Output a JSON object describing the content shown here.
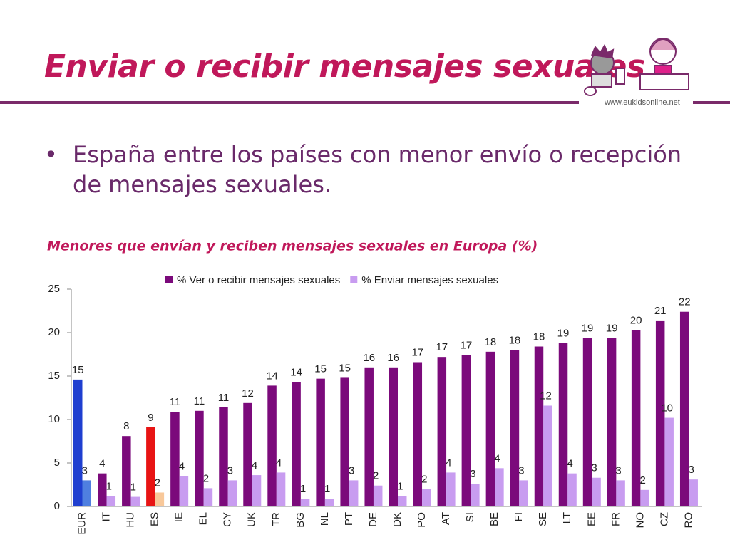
{
  "slide": {
    "title": "Enviar o recibir mensajes sexuales",
    "url": "www.eukidsonline.net",
    "bullet": "España entre los países con menor envío o recepción de mensajes sexuales."
  },
  "chart_data": {
    "type": "bar",
    "title": "Menores que envían y reciben mensajes sexuales en Europa (%)",
    "categories": [
      "EUR",
      "IT",
      "HU",
      "ES",
      "IE",
      "EL",
      "CY",
      "UK",
      "TR",
      "BG",
      "NL",
      "PT",
      "DE",
      "DK",
      "PO",
      "AT",
      "SI",
      "BE",
      "FI",
      "SE",
      "LT",
      "EE",
      "FR",
      "NO",
      "CZ",
      "RO"
    ],
    "series": [
      {
        "name": "% Ver o recibir mensajes sexuales",
        "color": "#7b0a7b",
        "colors": [
          "#1f3fd0",
          "#7b0a7b",
          "#7b0a7b",
          "#e81414",
          "#7b0a7b",
          "#7b0a7b",
          "#7b0a7b",
          "#7b0a7b",
          "#7b0a7b",
          "#7b0a7b",
          "#7b0a7b",
          "#7b0a7b",
          "#7b0a7b",
          "#7b0a7b",
          "#7b0a7b",
          "#7b0a7b",
          "#7b0a7b",
          "#7b0a7b",
          "#7b0a7b",
          "#7b0a7b",
          "#7b0a7b",
          "#7b0a7b",
          "#7b0a7b",
          "#7b0a7b",
          "#7b0a7b",
          "#7b0a7b"
        ],
        "values": [
          14.6,
          3.8,
          8.1,
          9.1,
          10.9,
          11.0,
          11.4,
          11.9,
          13.9,
          14.3,
          14.7,
          14.8,
          16.0,
          16.0,
          16.6,
          17.2,
          17.4,
          17.8,
          18.0,
          18.4,
          18.8,
          19.4,
          19.4,
          20.3,
          21.4,
          22.4
        ],
        "value_labels": [
          "15",
          "4",
          "8",
          "9",
          "11",
          "11",
          "11",
          "12",
          "14",
          "14",
          "15",
          "15",
          "16",
          "16",
          "17",
          "17",
          "17",
          "18",
          "18",
          "18",
          "19",
          "19",
          "19",
          "20",
          "21",
          "22"
        ]
      },
      {
        "name": "% Enviar mensajes sexuales",
        "color": "#c89cf0",
        "colors": [
          "#4f7fe0",
          "#c89cf0",
          "#c89cf0",
          "#f8c89a",
          "#c89cf0",
          "#c89cf0",
          "#c89cf0",
          "#c89cf0",
          "#c89cf0",
          "#c89cf0",
          "#c89cf0",
          "#c89cf0",
          "#c89cf0",
          "#c89cf0",
          "#c89cf0",
          "#c89cf0",
          "#c89cf0",
          "#c89cf0",
          "#c89cf0",
          "#c89cf0",
          "#c89cf0",
          "#c89cf0",
          "#c89cf0",
          "#c89cf0",
          "#c89cf0",
          "#c89cf0"
        ],
        "values": [
          3.0,
          1.2,
          1.1,
          1.6,
          3.5,
          2.1,
          3.0,
          3.6,
          3.9,
          0.9,
          0.9,
          3.0,
          2.4,
          1.2,
          2.0,
          3.9,
          2.6,
          4.4,
          3.0,
          11.6,
          3.8,
          3.3,
          3.0,
          1.9,
          10.2,
          3.1
        ],
        "value_labels": [
          "3",
          "1",
          "1",
          "2",
          "4",
          "2",
          "3",
          "4",
          "4",
          "1",
          "1",
          "3",
          "2",
          "1",
          "2",
          "4",
          "3",
          "4",
          "3",
          "12",
          "4",
          "3",
          "3",
          "2",
          "10",
          "3"
        ]
      }
    ],
    "ylim": [
      0,
      25
    ],
    "yticks": [
      0,
      5,
      10,
      15,
      20,
      25
    ],
    "grid": false,
    "legend": "top"
  }
}
